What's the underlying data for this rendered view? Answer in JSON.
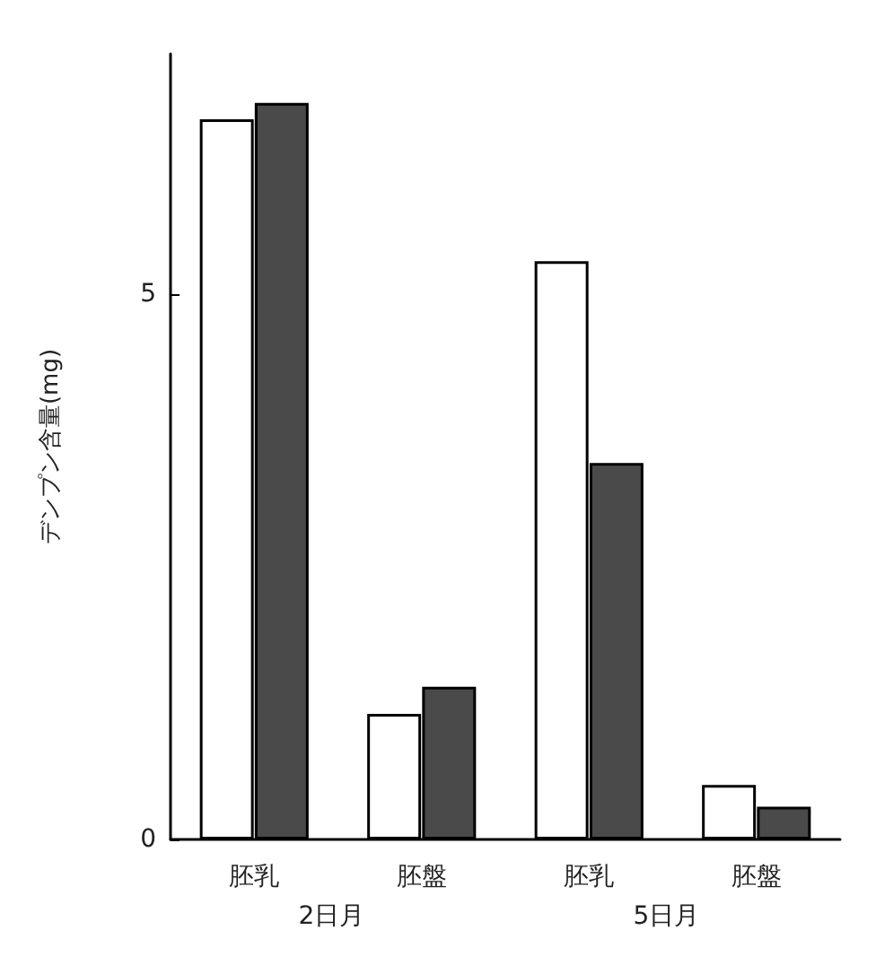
{
  "chart_data": {
    "type": "bar",
    "ylabel": "デンプン含量(mg)",
    "categories": [
      "胚乳",
      "胚盤",
      "胚乳",
      "胚盤"
    ],
    "series": [
      {
        "color": "#ffffff",
        "values": [
          6.6,
          1.15,
          5.3,
          0.5
        ]
      },
      {
        "color": "#4a4a4a",
        "values": [
          6.75,
          1.4,
          3.45,
          0.3
        ]
      }
    ],
    "ylim": [
      0,
      7.2
    ],
    "yticks": [
      0,
      5
    ],
    "grid": false,
    "annotations": [
      "2日月",
      "5日月"
    ]
  }
}
